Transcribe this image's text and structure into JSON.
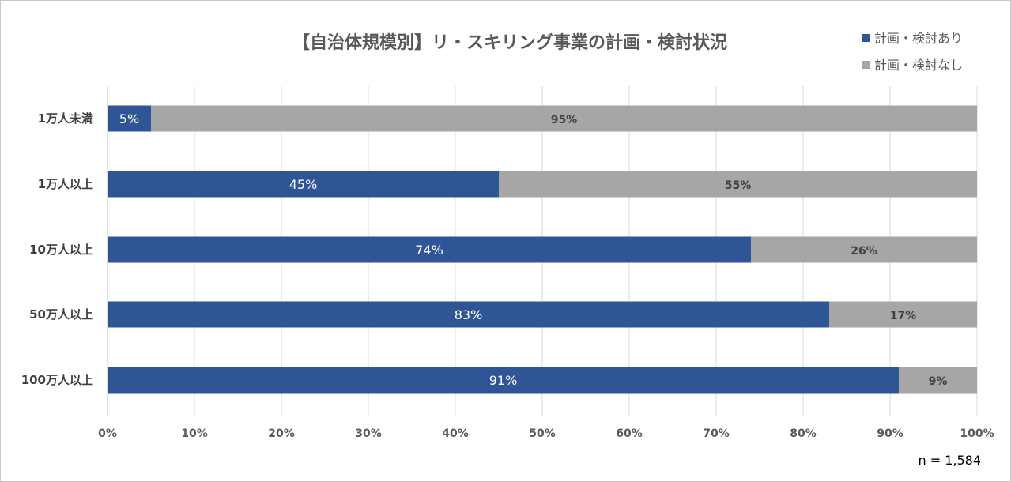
{
  "chart_data": {
    "type": "bar",
    "orientation": "horizontal",
    "stacked": true,
    "title": "【自治体規模別】リ・スキリング事業の計画・検討状況",
    "categories": [
      "1万人未満",
      "1万人以上",
      "10万人以上",
      "50万人以上",
      "100万人以上"
    ],
    "series": [
      {
        "name": "計画・検討あり",
        "color": "#2F5597",
        "values": [
          5,
          45,
          74,
          83,
          91
        ],
        "labels": [
          "5%",
          "45%",
          "74%",
          "83%",
          "91%"
        ]
      },
      {
        "name": "計画・検討なし",
        "color": "#A6A6A6",
        "values": [
          95,
          55,
          26,
          17,
          9
        ],
        "labels": [
          "95%",
          "55%",
          "26%",
          "17%",
          "9%"
        ]
      }
    ],
    "xlim": [
      0,
      100
    ],
    "xticks": [
      "0%",
      "10%",
      "20%",
      "30%",
      "40%",
      "50%",
      "60%",
      "70%",
      "80%",
      "90%",
      "100%"
    ],
    "grid": true,
    "legend_position": "top-right",
    "annotation": "n = 1,584"
  }
}
